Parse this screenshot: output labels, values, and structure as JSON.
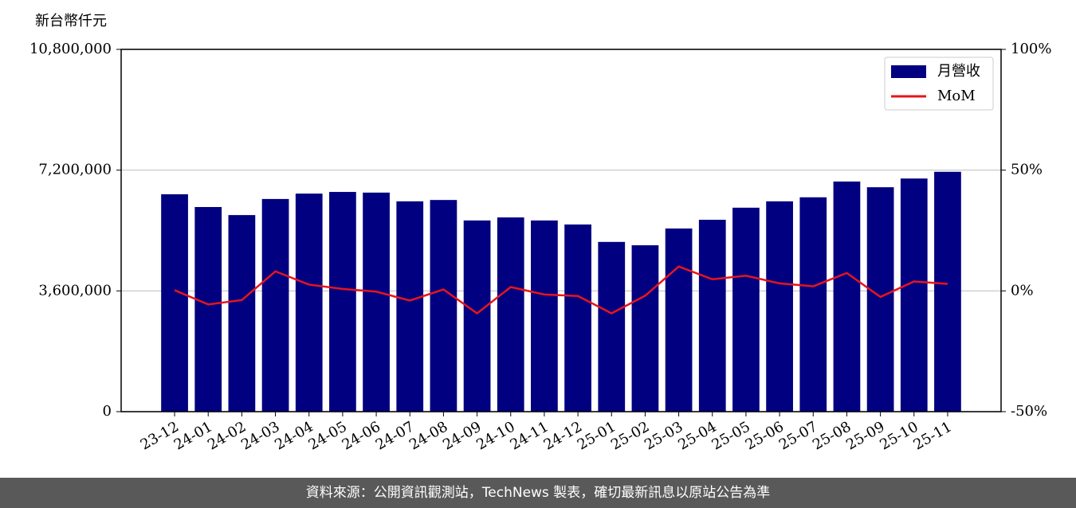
{
  "chart_data": {
    "type": "bar_line",
    "y_unit_label": "新台幣仟元",
    "categories": [
      "23-12",
      "24-01",
      "24-02",
      "24-03",
      "24-04",
      "24-05",
      "24-06",
      "24-07",
      "24-08",
      "24-09",
      "24-10",
      "24-11",
      "24-12",
      "25-01",
      "25-02",
      "25-03",
      "25-04",
      "25-05",
      "25-06",
      "25-07",
      "25-08",
      "25-09",
      "25-10",
      "25-11"
    ],
    "series": [
      {
        "name": "月營收",
        "type": "bar",
        "color": "#000080",
        "values": [
          6480000,
          6100000,
          5860000,
          6340000,
          6500000,
          6550000,
          6530000,
          6270000,
          6310000,
          5700000,
          5790000,
          5700000,
          5580000,
          5060000,
          4960000,
          5460000,
          5720000,
          6080000,
          6270000,
          6390000,
          6860000,
          6690000,
          6950000,
          7150000
        ]
      },
      {
        "name": "MoM",
        "type": "line",
        "axis": "y2",
        "color": "#e8141b",
        "values": [
          0.3,
          -5.6,
          -3.8,
          8.1,
          2.6,
          0.8,
          -0.3,
          -4.0,
          0.6,
          -9.3,
          1.6,
          -1.5,
          -2.1,
          -9.3,
          -2.0,
          10.1,
          4.8,
          6.3,
          3.1,
          1.9,
          7.4,
          -2.5,
          3.9,
          2.9
        ]
      }
    ],
    "ylim": [
      0,
      10800000
    ],
    "yticks": [
      {
        "value": 0,
        "label": "0"
      },
      {
        "value": 3600000,
        "label": "3,600,000"
      },
      {
        "value": 7200000,
        "label": "7,200,000"
      },
      {
        "value": 10800000,
        "label": "10,800,000"
      }
    ],
    "y2lim": [
      -50,
      100
    ],
    "y2ticks": [
      {
        "value": -50,
        "label": "-50%"
      },
      {
        "value": 0,
        "label": "0%"
      },
      {
        "value": 50,
        "label": "50%"
      },
      {
        "value": 100,
        "label": "100%"
      }
    ],
    "grid": true,
    "legend": "upper right"
  },
  "footer": "資料來源：公開資訊觀測站，TechNews 製表，確切最新訊息以原站公告為準"
}
